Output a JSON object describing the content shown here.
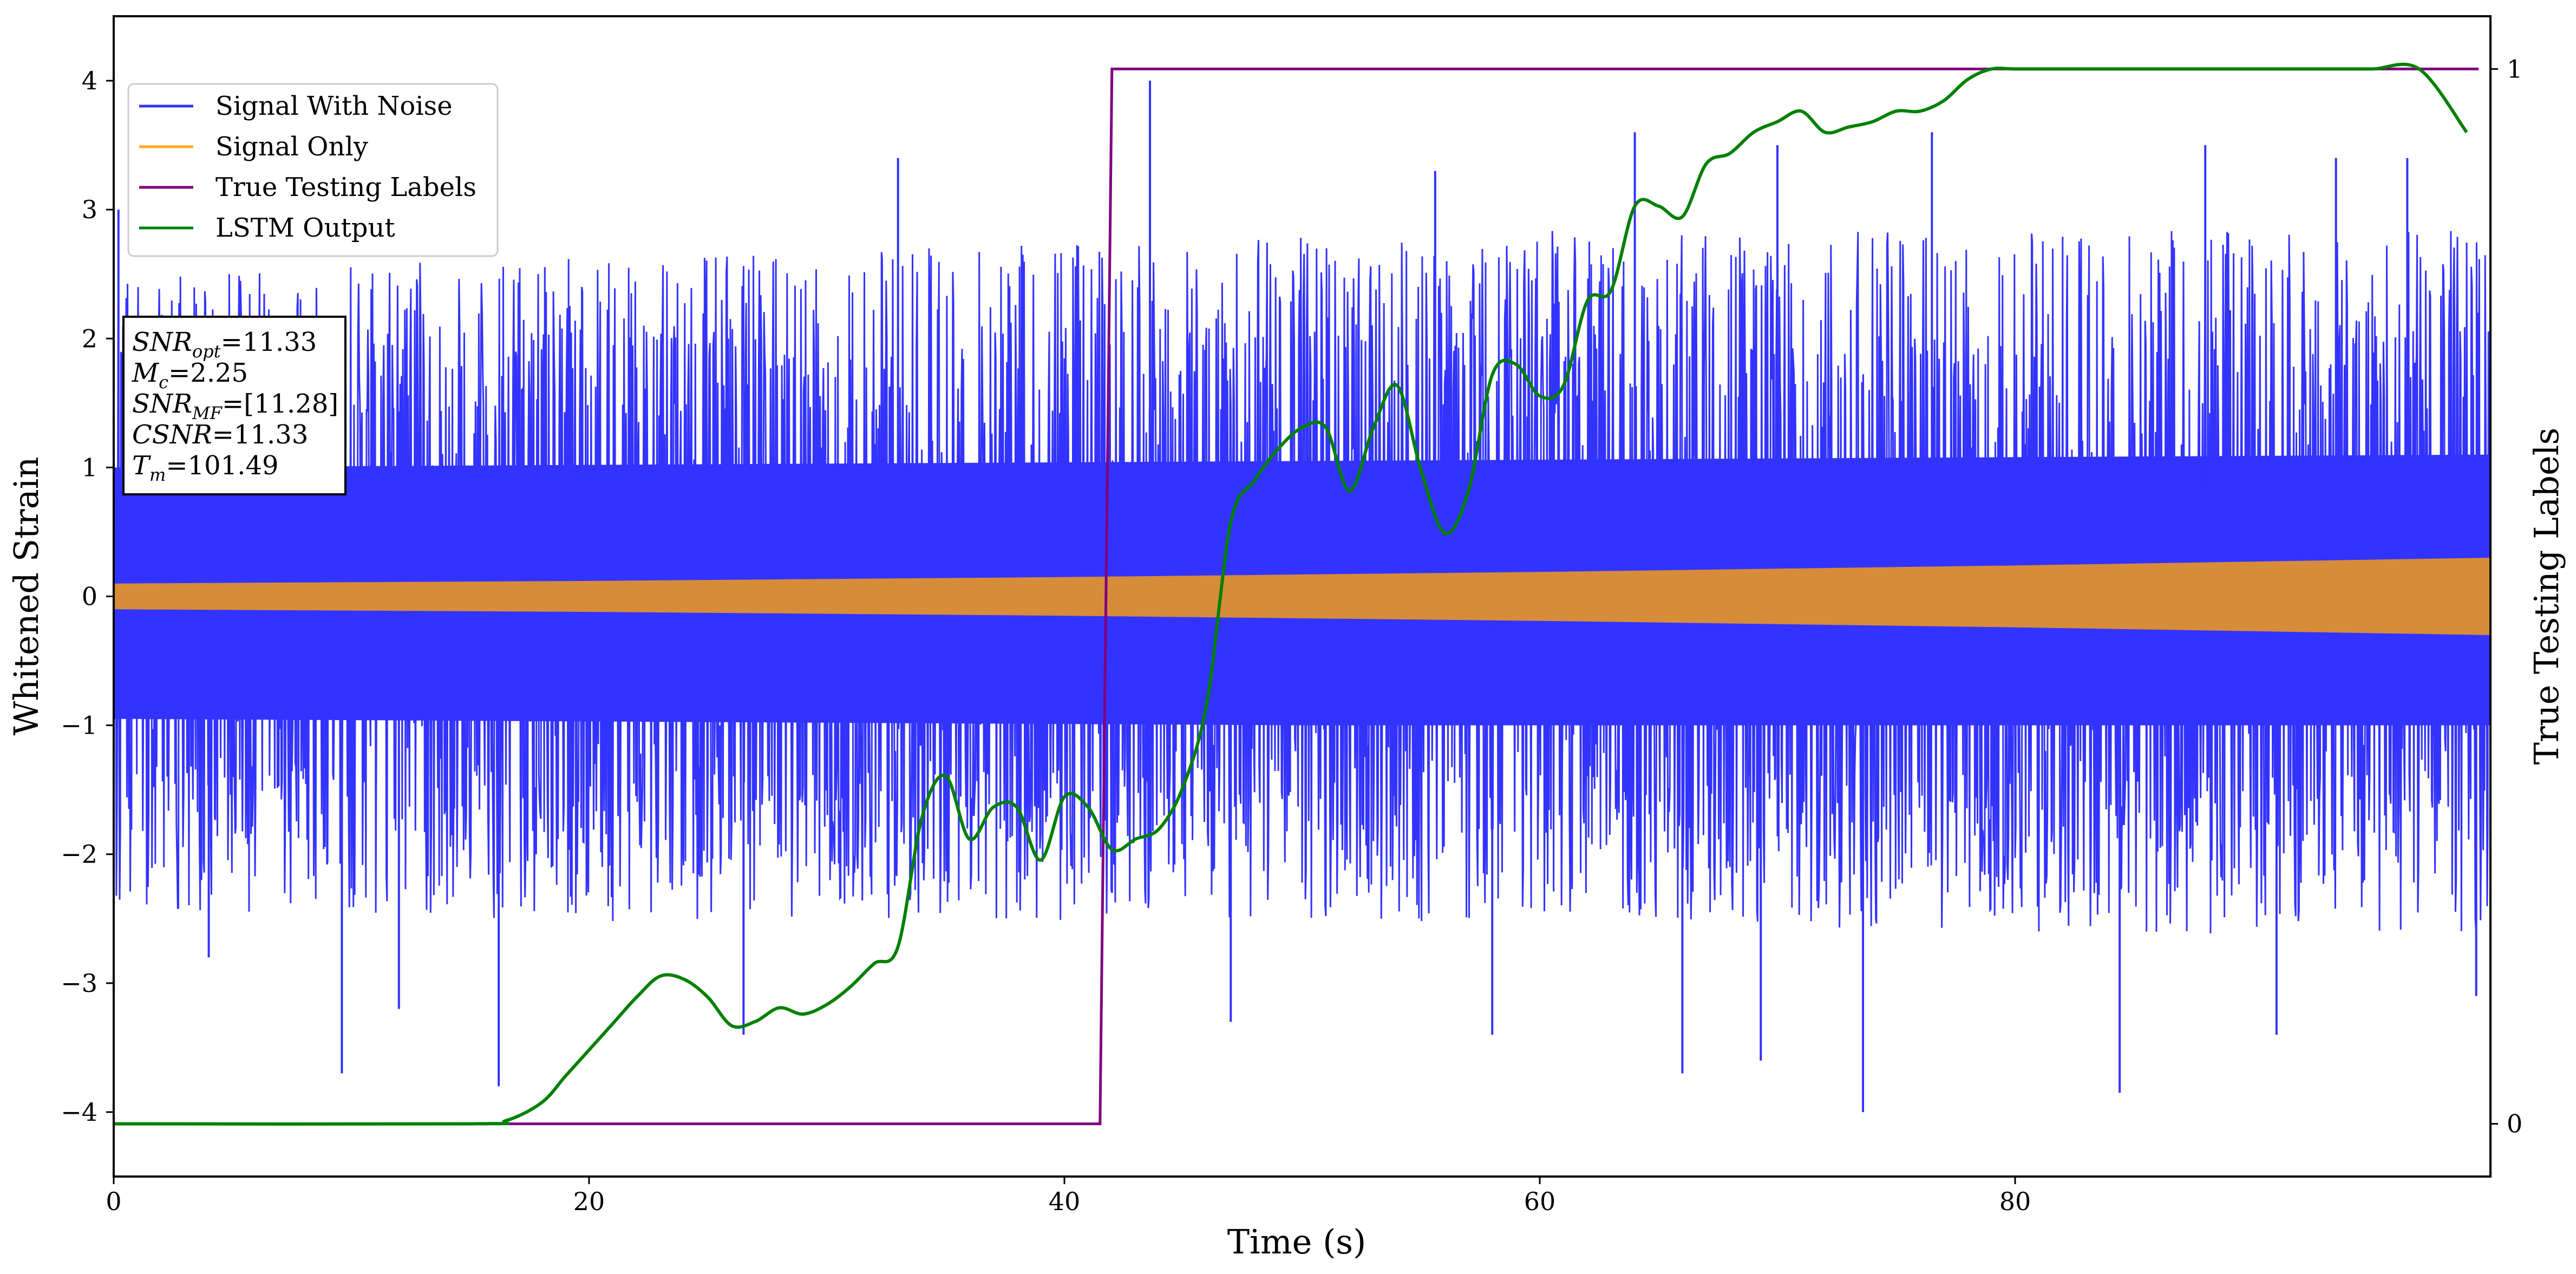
{
  "chart_data": {
    "type": "line",
    "xlabel": "Time (s)",
    "ylabel": "Whitened Strain",
    "y2label": "True Testing Labels",
    "xlim": [
      0,
      100
    ],
    "ylim": [
      -4.5,
      4.5
    ],
    "y2lim": [
      -0.05,
      1.05
    ],
    "x_ticks": [
      0,
      20,
      40,
      60,
      80
    ],
    "x_tick_labels": [
      "0",
      "20",
      "40",
      "60",
      "80"
    ],
    "y_ticks": [
      -4,
      -3,
      -2,
      -1,
      0,
      1,
      2,
      3,
      4
    ],
    "y_tick_labels": [
      "−4",
      "−3",
      "−2",
      "−1",
      "0",
      "1",
      "2",
      "3",
      "4"
    ],
    "y2_ticks": [
      0,
      1
    ],
    "y2_tick_labels": [
      "0",
      "1"
    ],
    "grid": false,
    "legend_position": "top-left",
    "series": [
      {
        "name": "Signal With Noise",
        "color": "#3333ff",
        "axis": "left",
        "kind": "noise",
        "description_envelope": [
          [
            0,
            -2.3,
            2.4
          ],
          [
            20,
            -2.4,
            2.5
          ],
          [
            40,
            -2.4,
            2.6
          ],
          [
            60,
            -2.4,
            2.7
          ],
          [
            80,
            -2.5,
            2.7
          ],
          [
            100,
            -2.5,
            2.7
          ]
        ],
        "core_band": [
          [
            0,
            -0.95,
            1.0
          ],
          [
            50,
            -1.0,
            1.05
          ],
          [
            100,
            -1.0,
            1.1
          ]
        ],
        "spikes": [
          [
            0.2,
            3.0
          ],
          [
            9.6,
            -3.7
          ],
          [
            16.2,
            -3.8
          ],
          [
            42.0,
            -2.3
          ],
          [
            43.6,
            4.0
          ],
          [
            55.6,
            3.3
          ],
          [
            64.0,
            3.6
          ],
          [
            69.3,
            -3.6
          ],
          [
            73.6,
            -4.0
          ],
          [
            76.5,
            3.6
          ],
          [
            84.4,
            -3.85
          ],
          [
            93.5,
            3.4
          ],
          [
            96.5,
            3.4
          ],
          [
            99.4,
            -3.1
          ],
          [
            4.0,
            -2.8
          ],
          [
            12.0,
            -3.2
          ],
          [
            26.5,
            -3.4
          ],
          [
            33.0,
            3.4
          ],
          [
            47.0,
            -3.3
          ],
          [
            58.0,
            -3.4
          ],
          [
            66.0,
            -3.7
          ],
          [
            70.0,
            3.5
          ],
          [
            88.0,
            3.5
          ],
          [
            91.0,
            -3.4
          ]
        ]
      },
      {
        "name": "Signal Only",
        "color": "#ffaa22",
        "axis": "left",
        "kind": "chirp",
        "amplitude": [
          [
            0,
            0.1
          ],
          [
            20,
            0.12
          ],
          [
            40,
            0.15
          ],
          [
            60,
            0.19
          ],
          [
            80,
            0.24
          ],
          [
            100,
            0.3
          ]
        ]
      },
      {
        "name": "True Testing Labels",
        "color": "#800080",
        "axis": "right",
        "kind": "line",
        "x": [
          0,
          41.5,
          42.0,
          99.5
        ],
        "y": [
          0,
          0,
          1,
          1
        ]
      },
      {
        "name": "LSTM Output",
        "color": "#008000",
        "axis": "right",
        "kind": "line",
        "x": [
          0,
          15,
          16.5,
          18,
          19,
          20,
          21,
          22,
          23,
          24,
          25,
          26,
          27,
          28,
          29,
          30,
          31,
          32,
          33,
          34,
          35,
          36,
          37,
          38,
          39,
          40,
          41,
          42,
          43,
          44,
          45,
          46,
          47,
          48,
          49,
          50,
          51,
          52,
          53,
          54,
          55,
          56,
          57,
          58,
          59,
          60,
          61,
          62,
          63,
          64,
          65,
          66,
          67,
          68,
          69,
          70,
          71,
          72,
          73,
          74,
          75,
          76,
          77,
          78,
          79,
          80,
          82,
          85,
          90,
          93,
          95,
          97,
          99
        ],
        "y": [
          0,
          0,
          0.003,
          0.02,
          0.045,
          0.07,
          0.095,
          0.12,
          0.14,
          0.137,
          0.12,
          0.093,
          0.097,
          0.11,
          0.104,
          0.113,
          0.13,
          0.152,
          0.168,
          0.29,
          0.33,
          0.27,
          0.3,
          0.3,
          0.25,
          0.31,
          0.3,
          0.26,
          0.27,
          0.28,
          0.32,
          0.4,
          0.57,
          0.61,
          0.64,
          0.66,
          0.66,
          0.6,
          0.66,
          0.7,
          0.62,
          0.56,
          0.6,
          0.71,
          0.72,
          0.69,
          0.7,
          0.78,
          0.79,
          0.87,
          0.87,
          0.86,
          0.91,
          0.92,
          0.94,
          0.95,
          0.96,
          0.94,
          0.945,
          0.95,
          0.96,
          0.96,
          0.97,
          0.99,
          1.0,
          1.0,
          1.0,
          1.0,
          1.0,
          1.0,
          1.0,
          1.0,
          0.94
        ]
      }
    ],
    "annotation": {
      "lines": [
        {
          "base": "SNR",
          "sub": "opt",
          "rest": "=11.33"
        },
        {
          "base": "M",
          "sub": "c",
          "rest": "=2.25"
        },
        {
          "base": "SNR",
          "sub": "MF",
          "rest": "=[11.28]"
        },
        {
          "base": "CSNR",
          "sub": "",
          "rest": "=11.33"
        },
        {
          "base": "T",
          "sub": "m",
          "rest": "=101.49"
        }
      ]
    }
  }
}
